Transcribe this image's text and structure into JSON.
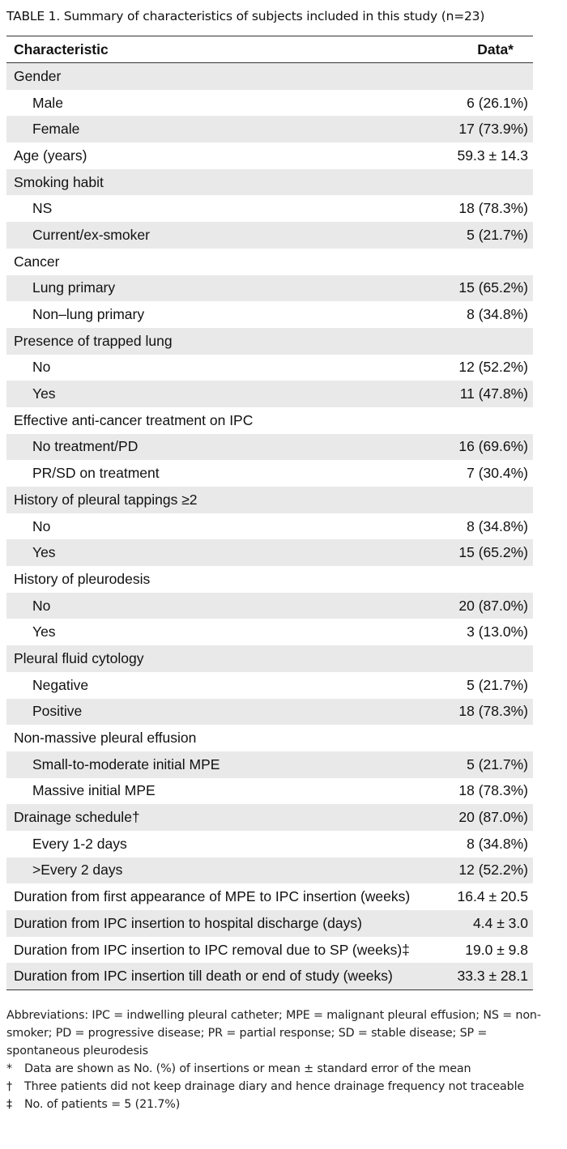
{
  "caption": {
    "label": "TABLE 1.",
    "text": "Summary of characteristics of subjects included in this study (n=23)"
  },
  "table": {
    "headers": [
      "Characteristic",
      "Data*"
    ],
    "rows": [
      {
        "label": "Gender",
        "value": "",
        "sub": false
      },
      {
        "label": "Male",
        "value": "6 (26.1%)",
        "sub": true
      },
      {
        "label": "Female",
        "value": "17 (73.9%)",
        "sub": true
      },
      {
        "label": "Age (years)",
        "value": "59.3 ± 14.3",
        "sub": false
      },
      {
        "label": "Smoking habit",
        "value": "",
        "sub": false
      },
      {
        "label": "NS",
        "value": "18 (78.3%)",
        "sub": true
      },
      {
        "label": "Current/ex-smoker",
        "value": "5 (21.7%)",
        "sub": true
      },
      {
        "label": "Cancer",
        "value": "",
        "sub": false
      },
      {
        "label": "Lung primary",
        "value": "15 (65.2%)",
        "sub": true
      },
      {
        "label": "Non–lung primary",
        "value": "8 (34.8%)",
        "sub": true
      },
      {
        "label": "Presence of trapped lung",
        "value": "",
        "sub": false
      },
      {
        "label": "No",
        "value": "12 (52.2%)",
        "sub": true
      },
      {
        "label": "Yes",
        "value": "11 (47.8%)",
        "sub": true
      },
      {
        "label": "Effective anti-cancer treatment on IPC",
        "value": "",
        "sub": false
      },
      {
        "label": "No treatment/PD",
        "value": "16 (69.6%)",
        "sub": true
      },
      {
        "label": "PR/SD on treatment",
        "value": "7 (30.4%)",
        "sub": true
      },
      {
        "label": "History of pleural tappings ≥2",
        "value": "",
        "sub": false
      },
      {
        "label": "No",
        "value": "8 (34.8%)",
        "sub": true
      },
      {
        "label": "Yes",
        "value": "15 (65.2%)",
        "sub": true
      },
      {
        "label": "History of pleurodesis",
        "value": "",
        "sub": false
      },
      {
        "label": "No",
        "value": "20 (87.0%)",
        "sub": true
      },
      {
        "label": "Yes",
        "value": "3 (13.0%)",
        "sub": true
      },
      {
        "label": "Pleural fluid cytology",
        "value": "",
        "sub": false
      },
      {
        "label": "Negative",
        "value": "5 (21.7%)",
        "sub": true
      },
      {
        "label": "Positive",
        "value": "18 (78.3%)",
        "sub": true
      },
      {
        "label": "Non-massive pleural effusion",
        "value": "",
        "sub": false
      },
      {
        "label": "Small-to-moderate initial MPE",
        "value": "5 (21.7%)",
        "sub": true
      },
      {
        "label": "Massive initial MPE",
        "value": "18 (78.3%)",
        "sub": true
      },
      {
        "label": "Drainage schedule†",
        "value": "20 (87.0%)",
        "sub": false
      },
      {
        "label": "Every 1-2 days",
        "value": "8 (34.8%)",
        "sub": true
      },
      {
        "label": ">Every 2 days",
        "value": "12 (52.2%)",
        "sub": true
      },
      {
        "label": "Duration from first appearance of MPE to IPC insertion (weeks)",
        "value": "16.4 ± 20.5",
        "sub": false
      },
      {
        "label": "Duration from IPC insertion to hospital discharge (days)",
        "value": "4.4 ± 3.0",
        "sub": false
      },
      {
        "label": "Duration from IPC insertion to IPC removal due to SP (weeks)‡",
        "value": "19.0 ± 9.8",
        "sub": false
      },
      {
        "label": "Duration from IPC insertion till death or end of study (weeks)",
        "value": "33.3 ± 28.1",
        "sub": false
      }
    ]
  },
  "notes": {
    "abbreviations": "Abbreviations: IPC = indwelling pleural catheter; MPE = malignant pleural effusion; NS = non-smoker; PD = progressive disease; PR = partial response; SD = stable disease; SP = spontaneous pleurodesis",
    "footnotes": [
      {
        "symbol": "*",
        "text": "Data are shown as No. (%) of insertions or mean ± standard error of the mean"
      },
      {
        "symbol": "†",
        "text": "Three patients did not keep drainage diary and hence drainage frequency not traceable"
      },
      {
        "symbol": "‡",
        "text": "No. of patients = 5 (21.7%)"
      }
    ]
  },
  "colors": {
    "stripe": "#e9e9e9",
    "rule": "#333333"
  }
}
